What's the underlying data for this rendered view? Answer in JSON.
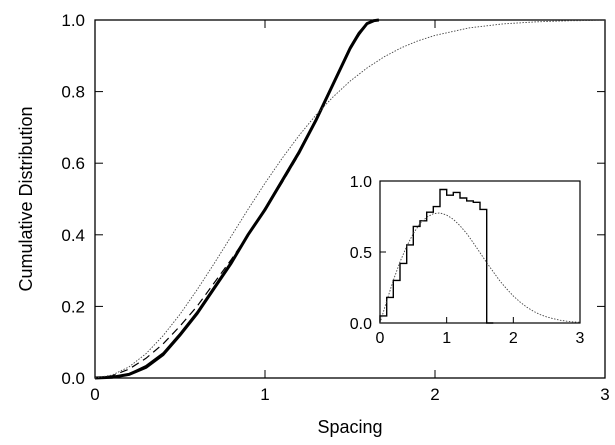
{
  "chart_data": [
    {
      "type": "line",
      "xlabel": "Spacing",
      "ylabel": "Cumulative Distribution",
      "xlim": [
        0,
        3
      ],
      "ylim": [
        0,
        1
      ],
      "x_ticks": [
        "0",
        "1",
        "2",
        "3"
      ],
      "y_ticks": [
        "0.0",
        "0.2",
        "0.4",
        "0.6",
        "0.8",
        "1.0"
      ],
      "series": [
        {
          "style": "thick-solid",
          "x": [
            0,
            0.1,
            0.2,
            0.3,
            0.4,
            0.5,
            0.6,
            0.7,
            0.8,
            0.9,
            1.0,
            1.1,
            1.2,
            1.3,
            1.4,
            1.5,
            1.55,
            1.6,
            1.64,
            1.67
          ],
          "y": [
            0,
            0.002,
            0.01,
            0.03,
            0.065,
            0.12,
            0.18,
            0.25,
            0.32,
            0.4,
            0.47,
            0.55,
            0.63,
            0.72,
            0.82,
            0.92,
            0.96,
            0.99,
            0.998,
            1.0
          ]
        },
        {
          "style": "thin-solid",
          "x": [
            0,
            0.1,
            0.2,
            0.3,
            0.4,
            0.5,
            0.6,
            0.7,
            0.8,
            0.9,
            1.0,
            1.1,
            1.2,
            1.3,
            1.4,
            1.5,
            1.55,
            1.6,
            1.63,
            1.65
          ],
          "y": [
            0,
            0.002,
            0.012,
            0.035,
            0.07,
            0.125,
            0.185,
            0.255,
            0.325,
            0.4,
            0.475,
            0.555,
            0.635,
            0.725,
            0.825,
            0.925,
            0.965,
            0.992,
            0.999,
            1.0
          ]
        },
        {
          "style": "dashed",
          "x": [
            0,
            0.1,
            0.2,
            0.3,
            0.4,
            0.5,
            0.6,
            0.7,
            0.8,
            0.9,
            1.0,
            1.1,
            1.2,
            1.3,
            1.4,
            1.5,
            1.6,
            1.65
          ],
          "y": [
            0,
            0.006,
            0.025,
            0.055,
            0.095,
            0.145,
            0.2,
            0.265,
            0.33,
            0.4,
            0.47,
            0.545,
            0.625,
            0.72,
            0.82,
            0.92,
            0.99,
            1.0
          ]
        },
        {
          "style": "dotted-thin",
          "x": [
            0,
            0.1,
            0.2,
            0.3,
            0.4,
            0.5,
            0.6,
            0.7,
            0.8,
            0.9,
            1.0,
            1.1,
            1.2,
            1.3,
            1.4,
            1.5,
            1.6,
            1.7,
            1.8,
            1.9,
            2.0,
            2.2,
            2.4,
            2.6,
            2.8,
            3.0
          ],
          "y": [
            0,
            0.008,
            0.031,
            0.068,
            0.118,
            0.178,
            0.246,
            0.319,
            0.395,
            0.471,
            0.544,
            0.613,
            0.677,
            0.735,
            0.785,
            0.829,
            0.866,
            0.897,
            0.922,
            0.942,
            0.957,
            0.978,
            0.989,
            0.995,
            0.998,
            0.999
          ]
        }
      ]
    },
    {
      "type": "histogram-line",
      "xlim": [
        0,
        3
      ],
      "ylim": [
        0,
        1
      ],
      "x_ticks": [
        "0",
        "1",
        "2",
        "3"
      ],
      "y_ticks": [
        "0.0",
        "0.5",
        "1.0"
      ],
      "histogram": {
        "bin_width": 0.1,
        "bin_starts": [
          0,
          0.1,
          0.2,
          0.3,
          0.4,
          0.5,
          0.6,
          0.7,
          0.8,
          0.9,
          1.0,
          1.1,
          1.2,
          1.3,
          1.4,
          1.5,
          1.6
        ],
        "values": [
          0.05,
          0.18,
          0.3,
          0.42,
          0.55,
          0.68,
          0.72,
          0.78,
          0.82,
          0.94,
          0.9,
          0.92,
          0.88,
          0.86,
          0.85,
          0.8,
          0.0
        ]
      },
      "curve": {
        "style": "dotted-thin",
        "x": [
          0,
          0.1,
          0.2,
          0.3,
          0.4,
          0.5,
          0.6,
          0.7,
          0.8,
          0.9,
          1.0,
          1.1,
          1.2,
          1.3,
          1.4,
          1.5,
          1.6,
          1.7,
          1.8,
          1.9,
          2.0,
          2.1,
          2.2,
          2.3,
          2.4,
          2.5,
          2.6,
          2.7,
          2.8,
          2.9,
          3.0
        ],
        "y": [
          0,
          0.155,
          0.3,
          0.43,
          0.54,
          0.63,
          0.7,
          0.745,
          0.77,
          0.775,
          0.76,
          0.73,
          0.685,
          0.63,
          0.565,
          0.495,
          0.425,
          0.36,
          0.295,
          0.24,
          0.19,
          0.148,
          0.112,
          0.083,
          0.06,
          0.043,
          0.03,
          0.02,
          0.013,
          0.008,
          0.005
        ]
      }
    }
  ]
}
